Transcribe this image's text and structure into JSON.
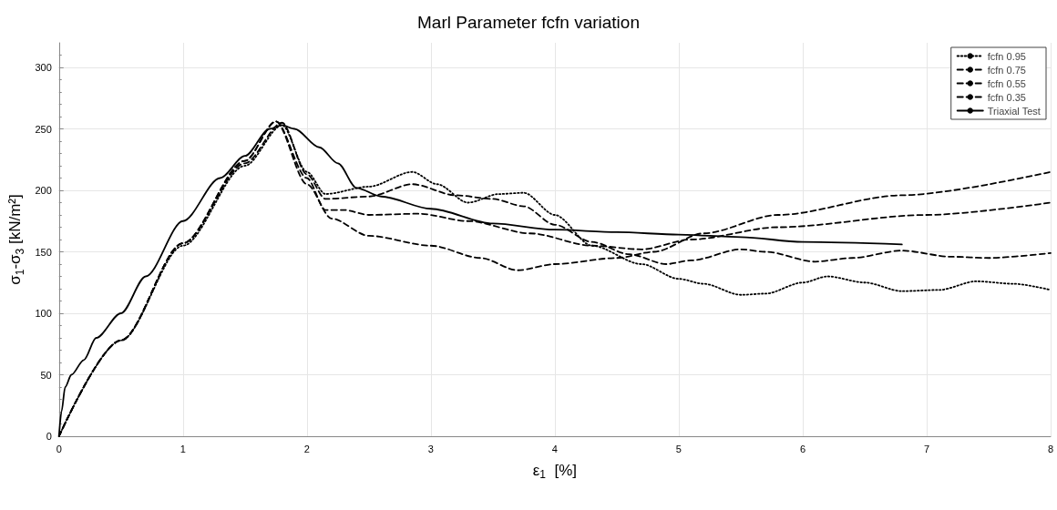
{
  "chart_data": {
    "type": "line",
    "title": "Marl Parameter fcfn variation",
    "xlabel": "ε$_{1}$  [%]",
    "ylabel": "σ$_{1}$-σ$_{3}$ [kN/m²]",
    "xlim": [
      0,
      8
    ],
    "xticks": [
      0,
      1,
      2,
      3,
      4,
      5,
      6,
      7,
      8
    ],
    "ylim": [
      0,
      320
    ],
    "yticks": [
      0,
      50,
      100,
      150,
      200,
      250,
      300
    ],
    "grid": true,
    "legend": "top right",
    "marker": "none",
    "series": [
      {
        "name": "fcfn 0.95",
        "color": "#000000",
        "line_style": "dotted",
        "x": [
          0,
          0.5,
          1,
          1.5,
          1.8,
          2.0,
          2.15,
          2.5,
          2.85,
          3.05,
          3.3,
          3.55,
          3.75,
          4.0,
          4.3,
          4.7,
          5.0,
          5.2,
          5.5,
          5.7,
          6.0,
          6.2,
          6.5,
          6.8,
          7.1,
          7.4,
          7.7,
          8
        ],
        "values": [
          0,
          78,
          155,
          220,
          253,
          215,
          197,
          203,
          215,
          205,
          190,
          197,
          198,
          180,
          155,
          140,
          128,
          124,
          115,
          116,
          125,
          130,
          125,
          118,
          119,
          126,
          124,
          119
        ]
      },
      {
        "name": "fcfn 0.75",
        "color": "#000000",
        "line_style": "dashed",
        "x": [
          0,
          0.5,
          1,
          1.5,
          1.8,
          2.0,
          2.15,
          2.5,
          2.85,
          3.2,
          3.5,
          3.75,
          4.0,
          4.3,
          4.6,
          4.9,
          5.1,
          5.5,
          5.7,
          6.1,
          6.4,
          6.8,
          7.2,
          7.5,
          8
        ],
        "values": [
          0,
          78,
          157,
          222,
          255,
          213,
          193,
          195,
          205,
          196,
          193,
          187,
          172,
          158,
          148,
          140,
          143,
          152,
          150,
          142,
          145,
          151,
          146,
          145,
          149
        ]
      },
      {
        "name": "fcfn 0.55",
        "color": "#000000",
        "line_style": "dashed",
        "x": [
          0,
          0.5,
          1,
          1.5,
          1.75,
          2.0,
          2.15,
          2.3,
          2.5,
          2.9,
          3.3,
          3.8,
          4.3,
          4.7,
          5.1,
          5.8,
          7,
          8
        ],
        "values": [
          0,
          78,
          157,
          224,
          256,
          210,
          184,
          184,
          180,
          181,
          175,
          165,
          155,
          152,
          160,
          170,
          180,
          190
        ]
      },
      {
        "name": "fcfn 0.35",
        "color": "#000000",
        "line_style": "dashed",
        "x": [
          0,
          0.5,
          1,
          1.5,
          1.75,
          2.0,
          2.2,
          2.5,
          3,
          3.4,
          3.7,
          4,
          4.5,
          4.8,
          5.2,
          5.8,
          6.8,
          8
        ],
        "values": [
          0,
          78,
          157,
          224,
          256,
          205,
          177,
          163,
          155,
          145,
          135,
          140,
          145,
          150,
          165,
          180,
          196,
          215
        ]
      },
      {
        "name": "Triaxial Test",
        "color": "#000000",
        "line_style": "solid",
        "x": [
          0,
          0.02,
          0.05,
          0.1,
          0.2,
          0.3,
          0.5,
          0.7,
          1,
          1.3,
          1.5,
          1.7,
          1.8,
          1.9,
          2.1,
          2.25,
          2.4,
          2.6,
          3,
          3.5,
          4,
          4.5,
          5,
          5.5,
          6,
          6.8
        ],
        "values": [
          0,
          20,
          40,
          50,
          62,
          80,
          100,
          130,
          175,
          210,
          228,
          250,
          253,
          250,
          235,
          222,
          202,
          195,
          185,
          173,
          168,
          166,
          164,
          162,
          158,
          156
        ]
      }
    ]
  }
}
